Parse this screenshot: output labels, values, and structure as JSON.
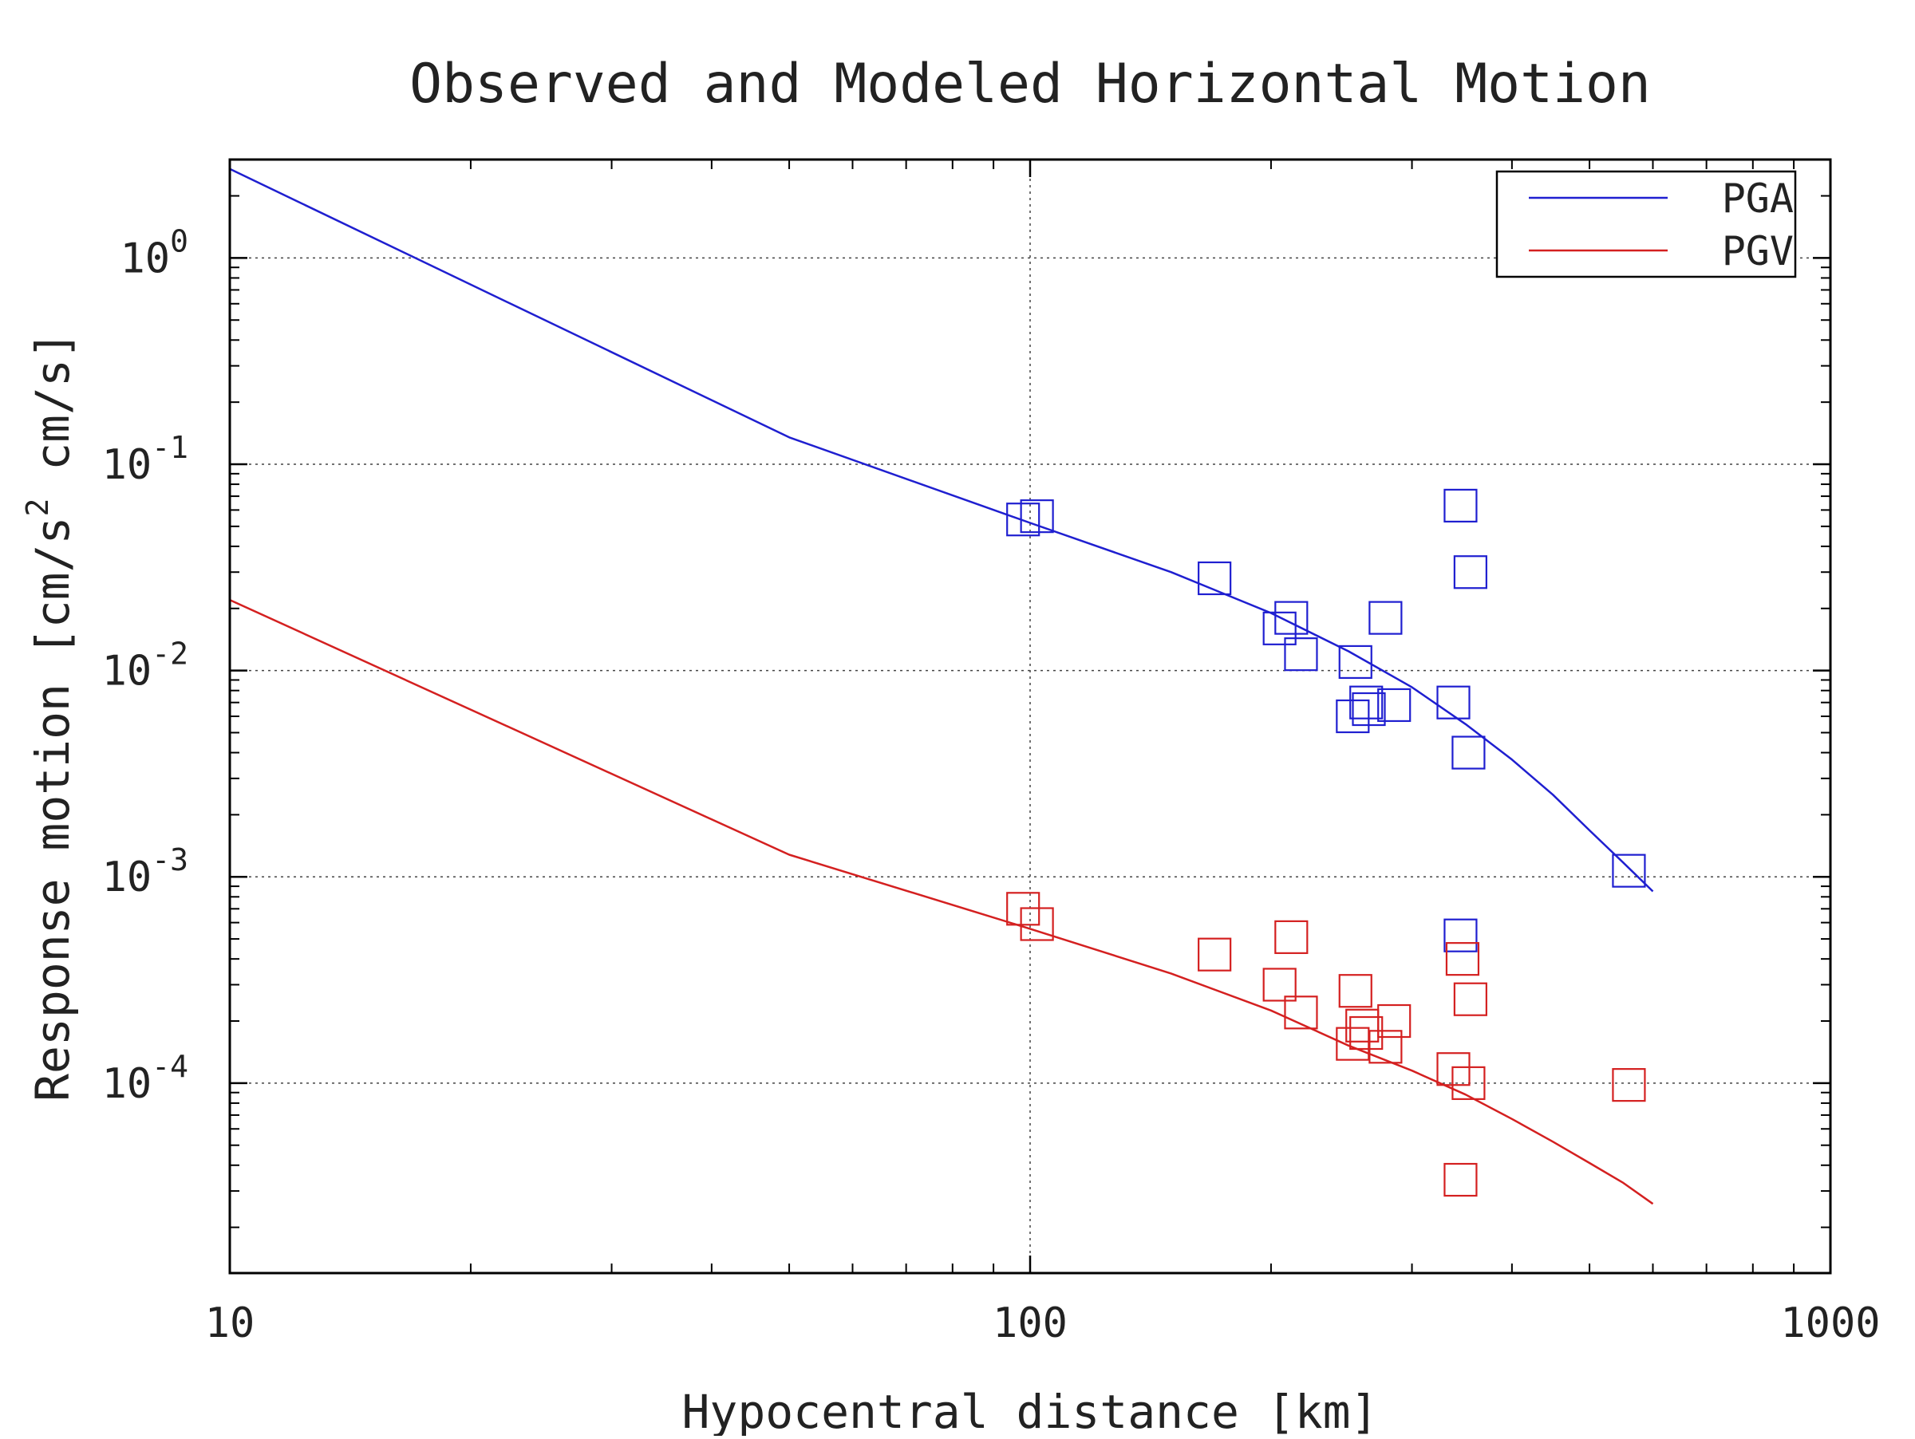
{
  "chart_data": {
    "type": "scatter",
    "title": "Observed and Modeled Horizontal Motion",
    "xlabel": "Hypocentral distance [km]",
    "ylabel": "Response motion [cm/s  cm/s]",
    "ylabel_parts": {
      "open": "Response motion [cm/s",
      "exp": "2",
      "close": "  cm/s]"
    },
    "x_scale": "log",
    "y_scale": "log",
    "xlim": [
      10,
      1000
    ],
    "ylim": [
      1.2e-05,
      3
    ],
    "grid": true,
    "legend_position": "top-right",
    "x_ticks": [
      {
        "value": 10,
        "label": "10"
      },
      {
        "value": 100,
        "label": "100"
      },
      {
        "value": 1000,
        "label": "1000"
      }
    ],
    "y_ticks": [
      {
        "value": 1,
        "base": "10",
        "exp": "0"
      },
      {
        "value": 0.1,
        "base": "10",
        "exp": "-1"
      },
      {
        "value": 0.01,
        "base": "10",
        "exp": "-2"
      },
      {
        "value": 0.001,
        "base": "10",
        "exp": "-3"
      },
      {
        "value": 0.0001,
        "base": "10",
        "exp": "-4"
      }
    ],
    "lines": [
      {
        "name": "PGA",
        "color": "#1f1fd0",
        "x": [
          10,
          50,
          100,
          150,
          200,
          250,
          300,
          350,
          400,
          450,
          500,
          550,
          600
        ],
        "y": [
          2.7,
          0.135,
          0.052,
          0.03,
          0.019,
          0.0124,
          0.0083,
          0.0055,
          0.0037,
          0.0025,
          0.00168,
          0.00118,
          0.00085
        ]
      },
      {
        "name": "PGV",
        "color": "#d42020",
        "x": [
          10,
          50,
          100,
          150,
          200,
          250,
          300,
          350,
          400,
          450,
          500,
          550,
          600
        ],
        "y": [
          0.022,
          0.00128,
          0.00056,
          0.00034,
          0.000225,
          0.000152,
          0.000115,
          8.8e-05,
          6.7e-05,
          5.2e-05,
          4.1e-05,
          3.3e-05,
          2.6e-05
        ]
      }
    ],
    "scatter": [
      {
        "color": "#1f1fd0",
        "points": [
          [
            98,
            0.054
          ],
          [
            102,
            0.056
          ],
          [
            170,
            0.028
          ],
          [
            205,
            0.016
          ],
          [
            212,
            0.018
          ],
          [
            218,
            0.012
          ],
          [
            255,
            0.011
          ],
          [
            253,
            0.006
          ],
          [
            263,
            0.007
          ],
          [
            265,
            0.0065
          ],
          [
            278,
            0.018
          ],
          [
            285,
            0.0068
          ],
          [
            338,
            0.007
          ],
          [
            345,
            0.063
          ],
          [
            353,
            0.004
          ],
          [
            355,
            0.03
          ],
          [
            560,
            0.00107
          ],
          [
            345,
            0.00052
          ]
        ]
      },
      {
        "color": "#d42020",
        "points": [
          [
            98,
            0.0007
          ],
          [
            102,
            0.00059
          ],
          [
            170,
            0.00042
          ],
          [
            205,
            0.0003
          ],
          [
            212,
            0.00051
          ],
          [
            218,
            0.00022
          ],
          [
            255,
            0.00028
          ],
          [
            253,
            0.000155
          ],
          [
            260,
            0.00019
          ],
          [
            263,
            0.000175
          ],
          [
            278,
            0.00015
          ],
          [
            285,
            0.0002
          ],
          [
            338,
            0.000117
          ],
          [
            347,
            0.0004
          ],
          [
            353,
            0.0001
          ],
          [
            355,
            0.000255
          ],
          [
            345,
            3.4e-05
          ],
          [
            560,
            9.8e-05
          ]
        ]
      }
    ]
  }
}
